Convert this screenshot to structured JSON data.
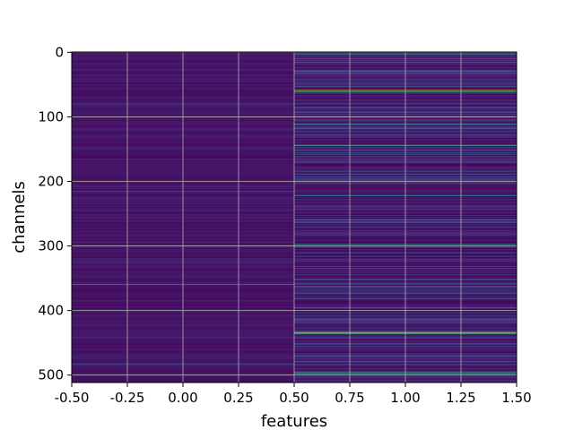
{
  "chart_data": {
    "type": "heatmap",
    "xlabel": "features",
    "ylabel": "channels",
    "colormap": "viridis",
    "xlim": [
      -0.5,
      1.5
    ],
    "ylim": [
      511.5,
      -0.5
    ],
    "x_ticks": [
      "-0.50",
      "-0.25",
      "0.00",
      "0.25",
      "0.50",
      "0.75",
      "1.00",
      "1.25",
      "1.50"
    ],
    "x_tick_values": [
      -0.5,
      -0.25,
      0.0,
      0.25,
      0.5,
      0.75,
      1.0,
      1.25,
      1.5
    ],
    "y_ticks": [
      "0",
      "100",
      "200",
      "300",
      "400",
      "500"
    ],
    "y_tick_values": [
      0,
      100,
      200,
      300,
      400,
      500
    ],
    "grid": true,
    "columns": [
      0,
      1
    ],
    "rows": 512,
    "value_range": [
      0,
      1
    ],
    "highlighted_cells": [
      {
        "channel": 3,
        "feature": 1,
        "value": 0.45
      },
      {
        "channel": 10,
        "feature": 1,
        "value": 0.35
      },
      {
        "channel": 16,
        "feature": 1,
        "value": 0.55
      },
      {
        "channel": 29,
        "feature": 1,
        "value": 0.45
      },
      {
        "channel": 33,
        "feature": 1,
        "value": 0.35
      },
      {
        "channel": 59,
        "feature": 1,
        "value": 0.95
      },
      {
        "channel": 61,
        "feature": 1,
        "value": 0.7
      },
      {
        "channel": 80,
        "feature": 0,
        "value": 0.3
      },
      {
        "channel": 111,
        "feature": 1,
        "value": 0.5
      },
      {
        "channel": 118,
        "feature": 1,
        "value": 0.35
      },
      {
        "channel": 144,
        "feature": 1,
        "value": 0.7
      },
      {
        "channel": 156,
        "feature": 1,
        "value": 0.35
      },
      {
        "channel": 158,
        "feature": 1,
        "value": 0.3
      },
      {
        "channel": 189,
        "feature": 1,
        "value": 0.3
      },
      {
        "channel": 215,
        "feature": 0,
        "value": 0.3
      },
      {
        "channel": 222,
        "feature": 1,
        "value": 0.55
      },
      {
        "channel": 238,
        "feature": 1,
        "value": 0.35
      },
      {
        "channel": 260,
        "feature": 1,
        "value": 0.5
      },
      {
        "channel": 263,
        "feature": 1,
        "value": 0.35
      },
      {
        "channel": 297,
        "feature": 1,
        "value": 0.5
      },
      {
        "channel": 360,
        "feature": 0,
        "value": 0.65
      },
      {
        "channel": 363,
        "feature": 1,
        "value": 0.55
      },
      {
        "channel": 374,
        "feature": 1,
        "value": 0.5
      },
      {
        "channel": 396,
        "feature": 1,
        "value": 0.45
      },
      {
        "channel": 434,
        "feature": 1,
        "value": 0.95
      },
      {
        "channel": 436,
        "feature": 1,
        "value": 0.7
      },
      {
        "channel": 470,
        "feature": 1,
        "value": 0.45
      },
      {
        "channel": 479,
        "feature": 1,
        "value": 0.35
      },
      {
        "channel": 483,
        "feature": 0,
        "value": 0.3
      },
      {
        "channel": 495,
        "feature": 1,
        "value": 0.55
      },
      {
        "channel": 497,
        "feature": 1,
        "value": 0.6
      },
      {
        "channel": 500,
        "feature": 0,
        "value": 0.3
      }
    ]
  }
}
